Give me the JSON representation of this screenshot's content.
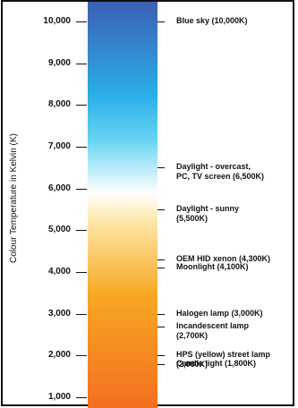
{
  "y_axis_label": "Colour Temperature in Kelvin (K)",
  "gradient_stops": [
    "#f36f21",
    "#f7a823",
    "#fde7a8",
    "#ffffff",
    "#66d4f2",
    "#2aaee8",
    "#3c5fb3"
  ],
  "ticks": [
    {
      "label": "10,000",
      "kelvin": 10000
    },
    {
      "label": "9,000",
      "kelvin": 9000
    },
    {
      "label": "8,000",
      "kelvin": 8000
    },
    {
      "label": "7,000",
      "kelvin": 7000
    },
    {
      "label": "6,000",
      "kelvin": 6000
    },
    {
      "label": "5,000",
      "kelvin": 5000
    },
    {
      "label": "4,000",
      "kelvin": 4000
    },
    {
      "label": "3,000",
      "kelvin": 3000
    },
    {
      "label": "2,000",
      "kelvin": 2000
    },
    {
      "label": "1,000",
      "kelvin": 1000
    }
  ],
  "annotations": [
    {
      "text": "Blue sky (10,000K)",
      "kelvin": 10000
    },
    {
      "text": "Daylight - overcast,\nPC, TV screen (6,500K)",
      "kelvin": 6500
    },
    {
      "text": "Daylight - sunny\n(5,500K)",
      "kelvin": 5500
    },
    {
      "text": "OEM HID xenon (4,300K)",
      "kelvin": 4300
    },
    {
      "text": "Moonlight (4,100K)",
      "kelvin": 4100
    },
    {
      "text": "Halogen lamp (3,000K)",
      "kelvin": 3000
    },
    {
      "text": "Incandescent lamp\n(2,700K)",
      "kelvin": 2700
    },
    {
      "text": "HPS (yellow) street lamp\n(2,000K)",
      "kelvin": 2000
    },
    {
      "text": "Candle light (1,800K)",
      "kelvin": 1800
    }
  ]
}
